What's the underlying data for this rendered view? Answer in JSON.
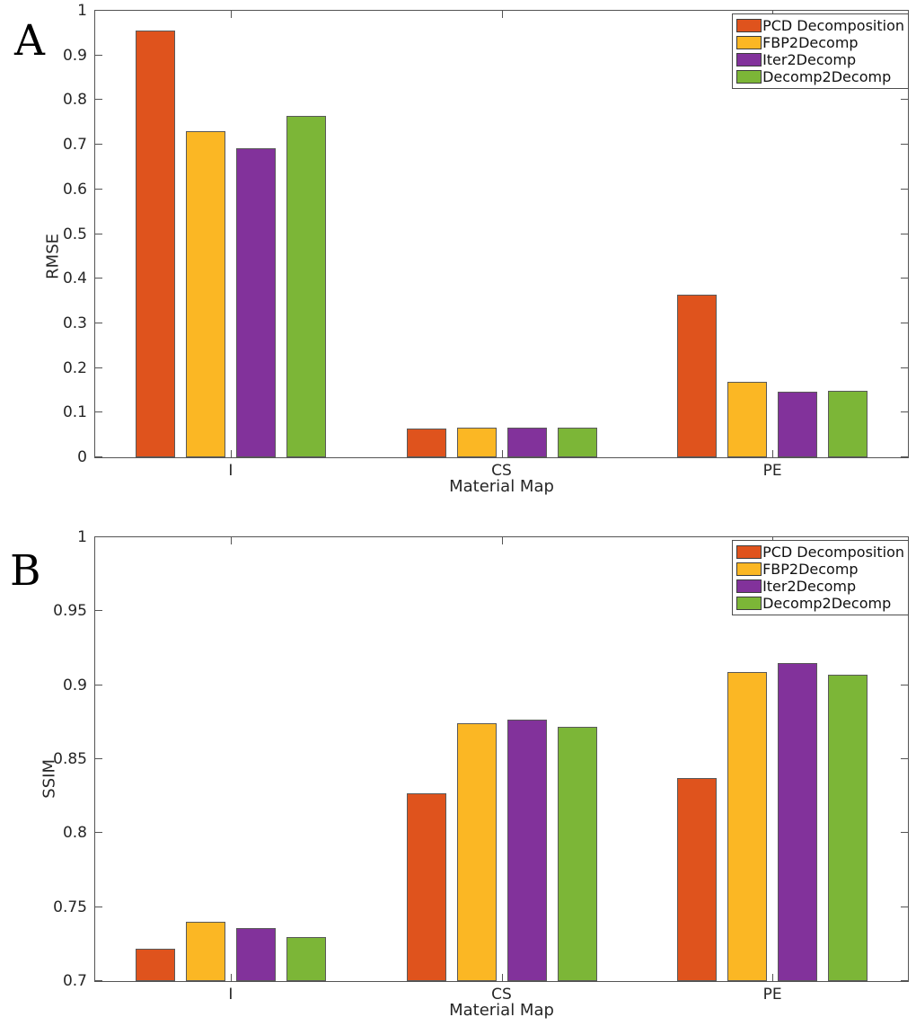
{
  "figure": {
    "background": "#ffffff",
    "spine_color": "#545454",
    "bar_edge_color": "#595959"
  },
  "chart_data": [
    {
      "panel": "A",
      "type": "bar",
      "title": "",
      "xlabel": "Material Map",
      "ylabel": "RMSE",
      "ylim": [
        0,
        1
      ],
      "ytick_values": [
        0,
        0.1,
        0.2,
        0.3,
        0.4,
        0.5,
        0.6,
        0.7,
        0.8,
        0.9,
        1
      ],
      "ytick_labels": [
        "0",
        "0.1",
        "0.2",
        "0.3",
        "0.4",
        "0.5",
        "0.6",
        "0.7",
        "0.8",
        "0.9",
        "1"
      ],
      "categories": [
        "I",
        "CS",
        "PE"
      ],
      "series": [
        {
          "name": "PCD Decomposition",
          "color": "#DF531D",
          "values": [
            0.955,
            0.065,
            0.365
          ]
        },
        {
          "name": "FBP2Decomp",
          "color": "#FBB724",
          "values": [
            0.731,
            0.066,
            0.17
          ]
        },
        {
          "name": "Iter2Decomp",
          "color": "#82329B",
          "values": [
            0.693,
            0.067,
            0.146
          ]
        },
        {
          "name": "Decomp2Decomp",
          "color": "#7CB637",
          "values": [
            0.765,
            0.067,
            0.148
          ]
        }
      ],
      "legend_position": "top-right",
      "grid": false
    },
    {
      "panel": "B",
      "type": "bar",
      "title": "",
      "xlabel": "Material Map",
      "ylabel": "SSIM",
      "ylim": [
        0.7,
        1
      ],
      "ytick_values": [
        0.7,
        0.75,
        0.8,
        0.85,
        0.9,
        0.95,
        1
      ],
      "ytick_labels": [
        "0.7",
        "0.75",
        "0.8",
        "0.85",
        "0.9",
        "0.95",
        "1"
      ],
      "categories": [
        "I",
        "CS",
        "PE"
      ],
      "series": [
        {
          "name": "PCD Decomposition",
          "color": "#DF531D",
          "values": [
            0.722,
            0.827,
            0.837
          ]
        },
        {
          "name": "FBP2Decomp",
          "color": "#FBB724",
          "values": [
            0.74,
            0.874,
            0.909
          ]
        },
        {
          "name": "Iter2Decomp",
          "color": "#82329B",
          "values": [
            0.736,
            0.877,
            0.915
          ]
        },
        {
          "name": "Decomp2Decomp",
          "color": "#7CB637",
          "values": [
            0.73,
            0.872,
            0.907
          ]
        }
      ],
      "legend_position": "top-right",
      "grid": false
    }
  ],
  "layout_note_values_are_data_not_layout": null
}
